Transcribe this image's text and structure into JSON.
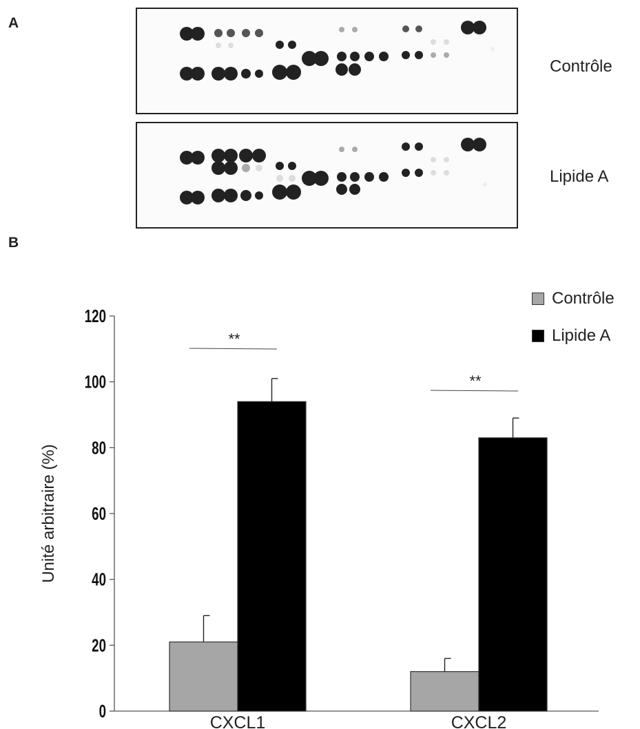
{
  "panels": {
    "a_label": "A",
    "b_label": "B"
  },
  "blots": [
    {
      "label": "Contrôle"
    },
    {
      "label": "Lipide A"
    }
  ],
  "legend": [
    {
      "label": "Contrôle",
      "color": "#a6a6a6"
    },
    {
      "label": "Lipide A",
      "color": "#000000"
    }
  ],
  "chart_data": {
    "type": "bar",
    "categories": [
      "CXCL1",
      "CXCL2"
    ],
    "series": [
      {
        "name": "Contrôle",
        "values": [
          21,
          12
        ],
        "errors": [
          8,
          4
        ],
        "color": "#a6a6a6"
      },
      {
        "name": "Lipide A",
        "values": [
          94,
          83
        ],
        "errors": [
          7,
          6
        ],
        "color": "#000000"
      }
    ],
    "ylabel": "Unité arbitraire (%)",
    "xlabel": "",
    "ylim": [
      0,
      120
    ],
    "yticks": [
      0,
      20,
      40,
      60,
      80,
      100,
      120
    ],
    "significance": [
      "**",
      "**"
    ],
    "grid": false,
    "legend_position": "top-right"
  }
}
